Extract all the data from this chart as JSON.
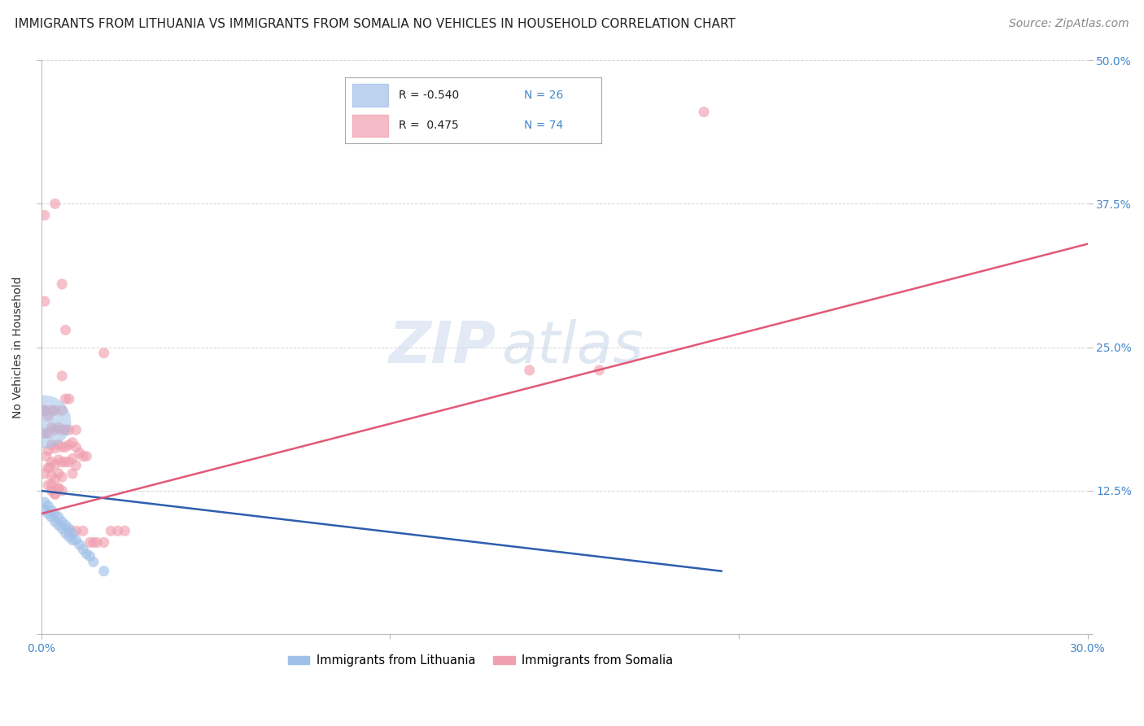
{
  "title": "IMMIGRANTS FROM LITHUANIA VS IMMIGRANTS FROM SOMALIA NO VEHICLES IN HOUSEHOLD CORRELATION CHART",
  "source": "Source: ZipAtlas.com",
  "ylabel": "No Vehicles in Household",
  "xlim": [
    0.0,
    0.3
  ],
  "ylim": [
    0.0,
    0.5
  ],
  "yticks": [
    0.0,
    0.125,
    0.25,
    0.375,
    0.5
  ],
  "ytick_labels": [
    "",
    "12.5%",
    "25.0%",
    "37.5%",
    "50.0%"
  ],
  "legend_title_blue": "Immigrants from Lithuania",
  "legend_title_pink": "Immigrants from Somalia",
  "watermark_zip": "ZIP",
  "watermark_atlas": "atlas",
  "background_color": "#ffffff",
  "grid_color": "#cccccc",
  "title_fontsize": 11,
  "axis_label_fontsize": 10,
  "tick_fontsize": 10,
  "source_fontsize": 10,
  "blue_line_color": "#2255aa",
  "pink_line_color": "#e05070",
  "blue_dot_color": "#a0c0e8",
  "pink_dot_color": "#f0a0b0",
  "dot_alpha": 0.65,
  "line_alpha": 0.95,
  "somalia_points": [
    [
      0.001,
      0.195
    ],
    [
      0.001,
      0.175
    ],
    [
      0.0015,
      0.155
    ],
    [
      0.001,
      0.14
    ],
    [
      0.002,
      0.19
    ],
    [
      0.002,
      0.175
    ],
    [
      0.002,
      0.16
    ],
    [
      0.0025,
      0.145
    ],
    [
      0.002,
      0.13
    ],
    [
      0.003,
      0.195
    ],
    [
      0.003,
      0.18
    ],
    [
      0.003,
      0.165
    ],
    [
      0.003,
      0.15
    ],
    [
      0.003,
      0.138
    ],
    [
      0.003,
      0.125
    ],
    [
      0.004,
      0.195
    ],
    [
      0.004,
      0.178
    ],
    [
      0.004,
      0.162
    ],
    [
      0.004,
      0.148
    ],
    [
      0.004,
      0.135
    ],
    [
      0.004,
      0.122
    ],
    [
      0.005,
      0.18
    ],
    [
      0.005,
      0.165
    ],
    [
      0.005,
      0.152
    ],
    [
      0.005,
      0.14
    ],
    [
      0.005,
      0.127
    ],
    [
      0.006,
      0.225
    ],
    [
      0.006,
      0.195
    ],
    [
      0.006,
      0.178
    ],
    [
      0.006,
      0.163
    ],
    [
      0.006,
      0.15
    ],
    [
      0.006,
      0.137
    ],
    [
      0.007,
      0.205
    ],
    [
      0.007,
      0.178
    ],
    [
      0.007,
      0.163
    ],
    [
      0.007,
      0.15
    ],
    [
      0.008,
      0.205
    ],
    [
      0.008,
      0.178
    ],
    [
      0.008,
      0.165
    ],
    [
      0.008,
      0.15
    ],
    [
      0.009,
      0.167
    ],
    [
      0.009,
      0.153
    ],
    [
      0.009,
      0.14
    ],
    [
      0.01,
      0.178
    ],
    [
      0.01,
      0.163
    ],
    [
      0.01,
      0.147
    ],
    [
      0.011,
      0.158
    ],
    [
      0.012,
      0.155
    ],
    [
      0.013,
      0.155
    ],
    [
      0.014,
      0.08
    ],
    [
      0.015,
      0.08
    ],
    [
      0.016,
      0.08
    ],
    [
      0.018,
      0.08
    ],
    [
      0.02,
      0.09
    ],
    [
      0.022,
      0.09
    ],
    [
      0.024,
      0.09
    ],
    [
      0.008,
      0.09
    ],
    [
      0.01,
      0.09
    ],
    [
      0.012,
      0.09
    ],
    [
      0.001,
      0.365
    ],
    [
      0.001,
      0.29
    ],
    [
      0.004,
      0.375
    ],
    [
      0.006,
      0.305
    ],
    [
      0.007,
      0.265
    ],
    [
      0.018,
      0.245
    ],
    [
      0.14,
      0.23
    ],
    [
      0.16,
      0.23
    ],
    [
      0.19,
      0.455
    ],
    [
      0.001,
      0.195
    ],
    [
      0.002,
      0.145
    ],
    [
      0.003,
      0.13
    ],
    [
      0.004,
      0.122
    ],
    [
      0.005,
      0.127
    ],
    [
      0.006,
      0.125
    ]
  ],
  "lithuania_points": [
    [
      0.001,
      0.115
    ],
    [
      0.001,
      0.108
    ],
    [
      0.002,
      0.112
    ],
    [
      0.002,
      0.105
    ],
    [
      0.003,
      0.108
    ],
    [
      0.003,
      0.102
    ],
    [
      0.004,
      0.105
    ],
    [
      0.004,
      0.098
    ],
    [
      0.005,
      0.102
    ],
    [
      0.005,
      0.095
    ],
    [
      0.006,
      0.098
    ],
    [
      0.006,
      0.092
    ],
    [
      0.007,
      0.095
    ],
    [
      0.007,
      0.088
    ],
    [
      0.008,
      0.092
    ],
    [
      0.008,
      0.085
    ],
    [
      0.009,
      0.088
    ],
    [
      0.009,
      0.082
    ],
    [
      0.01,
      0.082
    ],
    [
      0.011,
      0.078
    ],
    [
      0.012,
      0.074
    ],
    [
      0.013,
      0.07
    ],
    [
      0.014,
      0.068
    ],
    [
      0.015,
      0.063
    ],
    [
      0.018,
      0.055
    ]
  ],
  "lithuania_large_dot": [
    0.001,
    0.185
  ],
  "lithuania_large_size": 2200,
  "blue_line_x": [
    0.0,
    0.195
  ],
  "blue_line_y": [
    0.125,
    0.055
  ],
  "pink_line_x": [
    0.0,
    0.3
  ],
  "pink_line_y": [
    0.105,
    0.34
  ]
}
